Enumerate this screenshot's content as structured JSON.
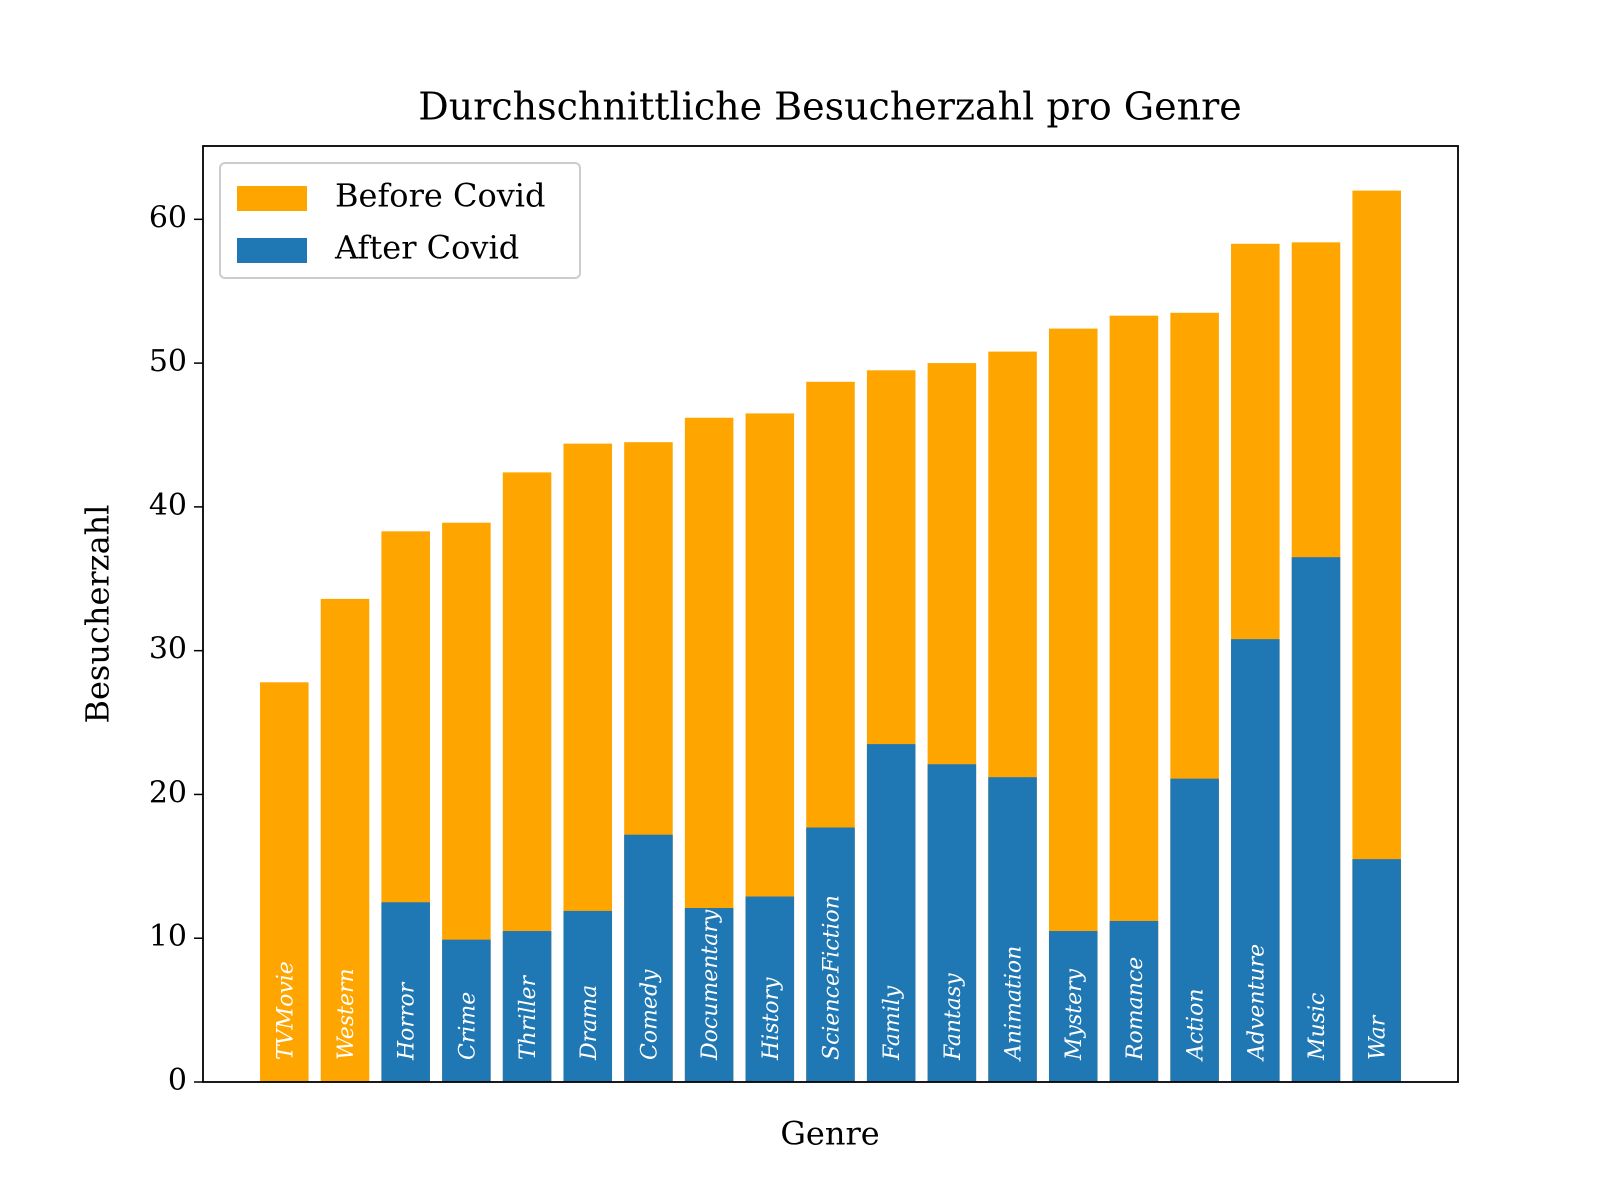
{
  "chart_data": {
    "type": "bar",
    "title": "Durchschnittliche Besucherzahl pro Genre",
    "x_label": "Genre",
    "y_label": "Besucherzahl",
    "categories": [
      "TVMovie",
      "Western",
      "Horror",
      "Crime",
      "Thriller",
      "Drama",
      "Comedy",
      "Documentary",
      "History",
      "ScienceFiction",
      "Family",
      "Fantasy",
      "Animation",
      "Mystery",
      "Romance",
      "Action",
      "Adventure",
      "Music",
      "War"
    ],
    "series": [
      {
        "name": "Before Covid",
        "color": "#ffa500",
        "values": [
          27.8,
          33.6,
          38.3,
          38.9,
          42.4,
          44.4,
          44.5,
          46.2,
          46.5,
          48.7,
          49.5,
          50.0,
          50.8,
          52.4,
          53.3,
          53.5,
          58.3,
          58.4,
          62.0
        ]
      },
      {
        "name": "After Covid",
        "color": "#1f77b4",
        "values": [
          null,
          null,
          12.5,
          9.9,
          10.5,
          11.9,
          17.2,
          12.1,
          12.9,
          17.7,
          23.5,
          22.1,
          21.2,
          10.5,
          11.2,
          21.1,
          30.8,
          36.5,
          15.5
        ]
      }
    ],
    "ylim": [
      0,
      65.1
    ],
    "yticks": [
      0,
      10,
      20,
      30,
      40,
      50,
      60
    ],
    "legend": "upper left",
    "grid": false
  }
}
